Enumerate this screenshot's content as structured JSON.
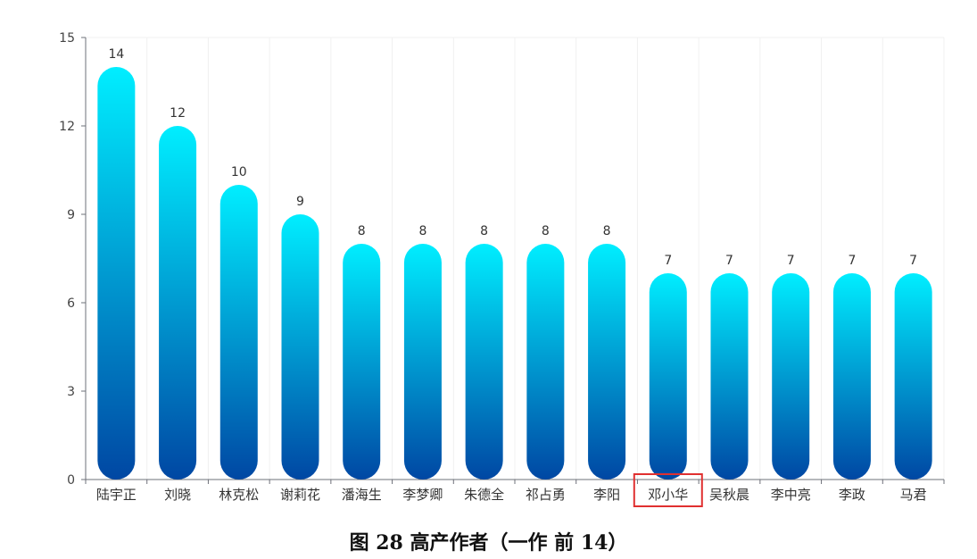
{
  "chart_data": {
    "type": "bar",
    "categories": [
      "陆宇正",
      "刘晓",
      "林克松",
      "谢莉花",
      "潘海生",
      "李梦卿",
      "朱德全",
      "祁占勇",
      "李阳",
      "邓小华",
      "吴秋晨",
      "李中亮",
      "李政",
      "马君"
    ],
    "values": [
      14,
      12,
      10,
      9,
      8,
      8,
      8,
      8,
      8,
      7,
      7,
      7,
      7,
      7
    ],
    "ylim": [
      0,
      15
    ],
    "yticks": [
      0,
      3,
      6,
      9,
      12,
      15
    ],
    "data_labels": true,
    "grid": "vertical-light",
    "highlighted_category": "邓小华",
    "bar_gradient": {
      "top": "#00eeff",
      "bottom": "#0047a3"
    },
    "highlight_color": "#e03030"
  },
  "caption": "图 28 高产作者（一作 前 14）"
}
